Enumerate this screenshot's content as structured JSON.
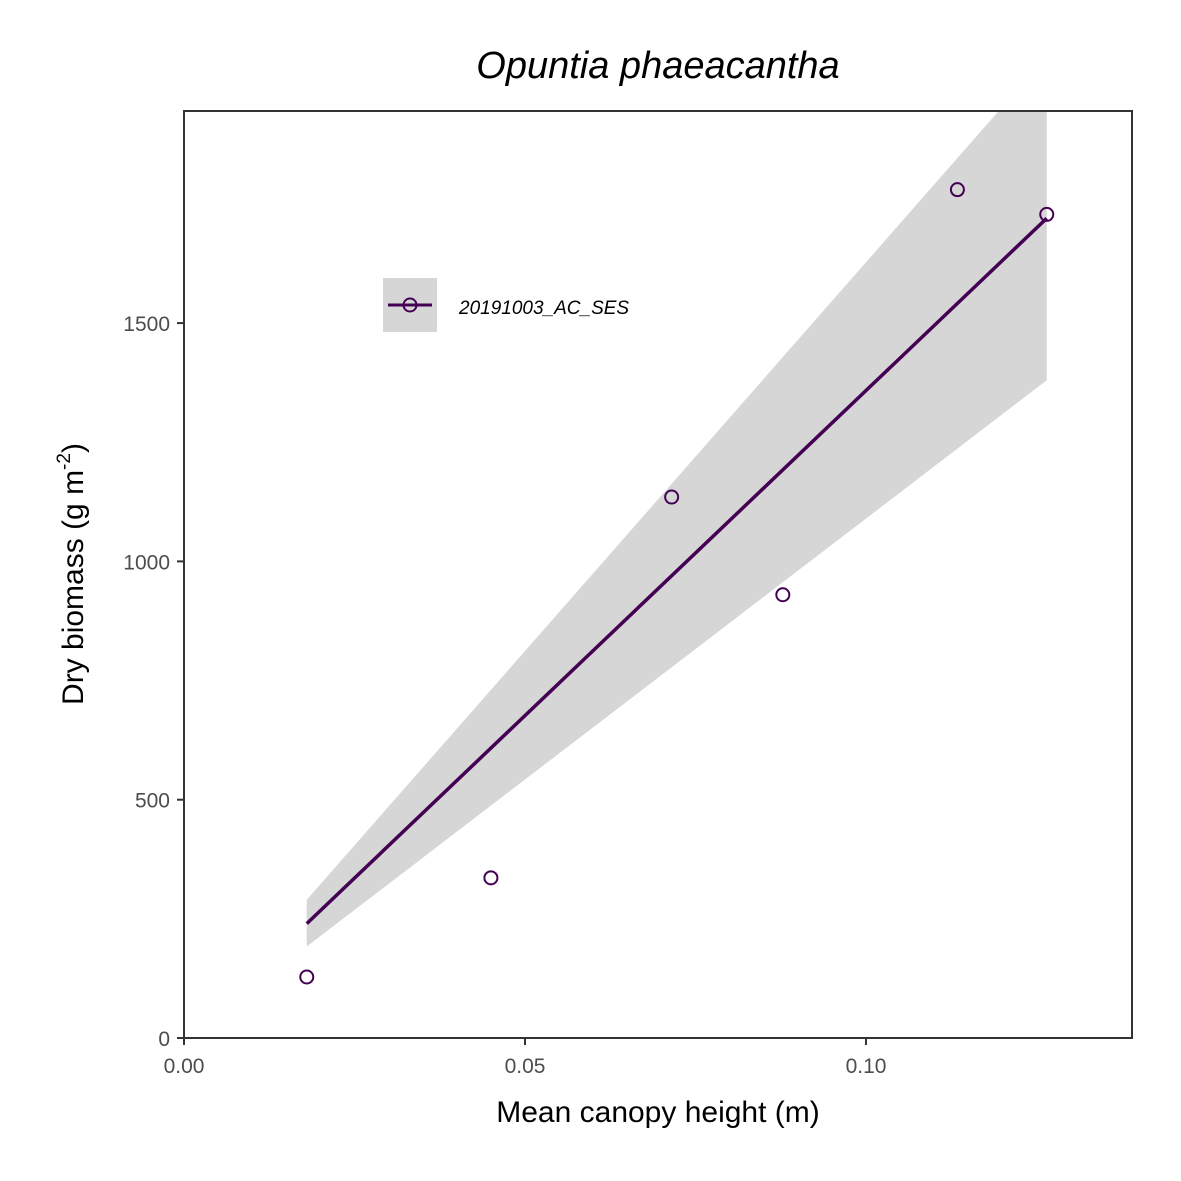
{
  "chart_data": {
    "type": "scatter",
    "title": "Opuntia phaeacantha",
    "xlabel": "Mean canopy height (m)",
    "ylabel": "Dry biomass (g m⁻²)",
    "ylabel_parts": {
      "main": "Dry biomass (g m",
      "sup": "-2",
      "end": ")"
    },
    "xlim": [
      0,
      0.139
    ],
    "ylim": [
      0,
      1945
    ],
    "x_ticks": [
      0.0,
      0.05,
      0.1
    ],
    "x_tick_labels": [
      "0.00",
      "0.05",
      "0.10"
    ],
    "y_ticks": [
      0,
      500,
      1000,
      1500
    ],
    "y_tick_labels": [
      "0",
      "500",
      "1000",
      "1500"
    ],
    "grid": false,
    "legend_position": "top-left",
    "series": [
      {
        "name": "20191003_AC_SES",
        "color": "#440154",
        "points": [
          {
            "x": 0.018,
            "y": 128
          },
          {
            "x": 0.045,
            "y": 336
          },
          {
            "x": 0.0715,
            "y": 1135
          },
          {
            "x": 0.0878,
            "y": 930
          },
          {
            "x": 0.1134,
            "y": 1780
          },
          {
            "x": 0.1265,
            "y": 1728
          }
        ],
        "fit": {
          "x": [
            0.018,
            0.1265
          ],
          "y": [
            240,
            1720
          ],
          "ci_lower": [
            192,
            1380
          ],
          "ci_upper": [
            290,
            2060
          ]
        }
      }
    ]
  },
  "colors": {
    "ribbon": "#d6d6d6",
    "axis": "#333333",
    "tick_text": "#4d4d4d"
  }
}
